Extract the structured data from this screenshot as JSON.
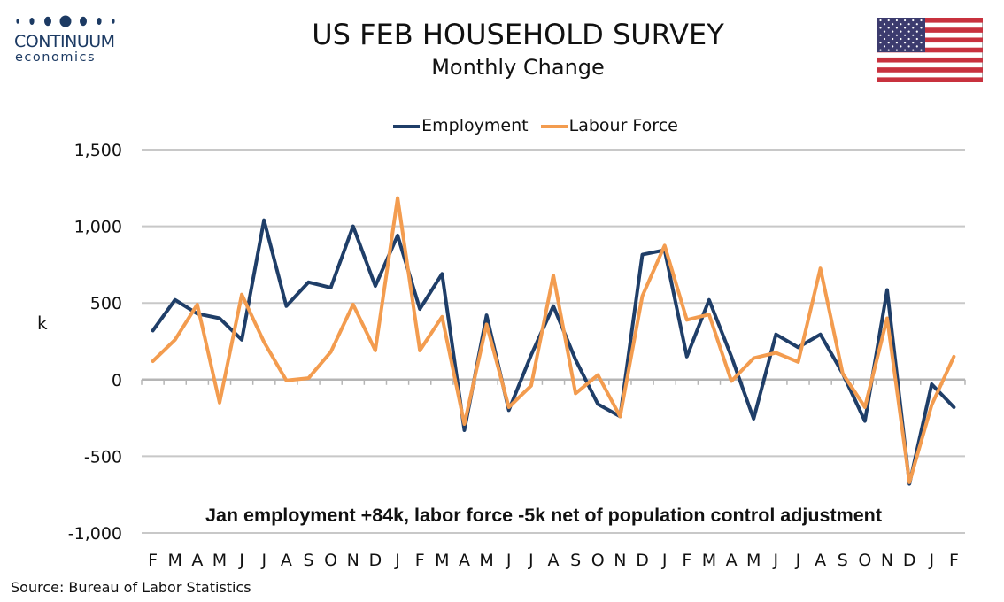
{
  "logo": {
    "line1": "CONTINUUM",
    "line2": "economics",
    "color": "#1c3a63"
  },
  "flag": {
    "name": "us-flag"
  },
  "chart_data": {
    "type": "line",
    "title": "US FEB HOUSEHOLD SURVEY",
    "subtitle": "Monthly Change",
    "ylabel": "k",
    "ylim": [
      -1000,
      1500
    ],
    "yticks": [
      1500,
      1000,
      500,
      0,
      -500,
      -1000
    ],
    "ytick_labels": [
      "1,500",
      "1,000",
      "500",
      "0",
      "-500",
      "-1,000"
    ],
    "grid": true,
    "legend_position": "top-center",
    "categories": [
      "F",
      "M",
      "A",
      "M",
      "J",
      "J",
      "A",
      "S",
      "O",
      "N",
      "D",
      "J",
      "F",
      "M",
      "A",
      "M",
      "J",
      "J",
      "A",
      "S",
      "O",
      "N",
      "D",
      "J",
      "F",
      "M",
      "A",
      "M",
      "J",
      "J",
      "A",
      "S",
      "O",
      "N",
      "D",
      "J",
      "F"
    ],
    "series": [
      {
        "name": "Employment",
        "color": "#1f3e68",
        "values": [
          320,
          520,
          430,
          400,
          260,
          1040,
          480,
          635,
          600,
          1000,
          610,
          940,
          460,
          690,
          -330,
          420,
          -200,
          160,
          480,
          130,
          -160,
          -240,
          815,
          845,
          150,
          520,
          150,
          -255,
          295,
          210,
          295,
          40,
          -270,
          585,
          -680,
          -30,
          -180
        ]
      },
      {
        "name": "Labour Force",
        "color": "#f39c4f",
        "values": [
          120,
          260,
          490,
          -150,
          555,
          245,
          -5,
          10,
          180,
          490,
          190,
          1185,
          190,
          410,
          -290,
          360,
          -180,
          -40,
          680,
          -90,
          30,
          -240,
          545,
          875,
          390,
          425,
          -10,
          140,
          175,
          115,
          725,
          40,
          -180,
          400,
          -670,
          -165,
          150
        ]
      }
    ],
    "annotation": "Jan employment +84k, labor force -5k net of population control adjustment"
  },
  "source": "Source: Bureau of Labor Statistics"
}
